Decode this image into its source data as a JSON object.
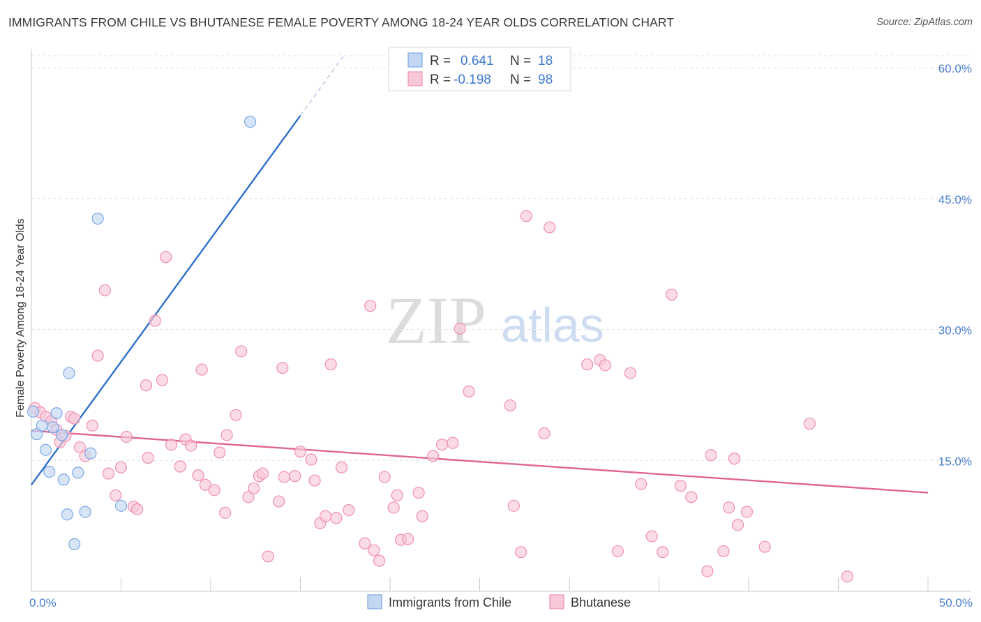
{
  "header": {
    "title": "IMMIGRANTS FROM CHILE VS BHUTANESE FEMALE POVERTY AMONG 18-24 YEAR OLDS CORRELATION CHART",
    "source": "Source: ZipAtlas.com"
  },
  "watermark": {
    "zip": "ZIP",
    "atlas": "atlas"
  },
  "legend": {
    "r_label": "R =",
    "n_label": "N =",
    "series1": {
      "r": "0.641",
      "n": "18"
    },
    "series2": {
      "r": "-0.198",
      "n": "98"
    }
  },
  "chart_data": {
    "type": "scatter",
    "title": "IMMIGRANTS FROM CHILE VS BHUTANESE FEMALE POVERTY AMONG 18-24 YEAR OLDS CORRELATION CHART",
    "xlabel": "",
    "ylabel": "Female Poverty Among 18-24 Year Olds",
    "xlim": [
      0,
      50
    ],
    "ylim": [
      0,
      60
    ],
    "x_tick_labels": [
      "0.0%",
      "50.0%"
    ],
    "y_tick_labels": [
      "15.0%",
      "30.0%",
      "45.0%",
      "60.0%"
    ],
    "y_ticks": [
      15,
      30,
      45,
      60
    ],
    "grid": true,
    "legend_position": "top-center",
    "series": [
      {
        "name": "Immigrants from Chile",
        "color": "#7aa7e6",
        "fill": "#c3d7f3",
        "trend_color": "#2f6fc9",
        "R": 0.641,
        "N": 18,
        "trend": {
          "x0": 0,
          "y0": 12.2,
          "x1": 15,
          "y1": 54.5,
          "dash_to_x": 17.5,
          "dash_to_y": 61.6
        },
        "points": [
          [
            0.1,
            20.6
          ],
          [
            0.3,
            18.0
          ],
          [
            0.6,
            19.0
          ],
          [
            0.8,
            16.2
          ],
          [
            1.0,
            13.7
          ],
          [
            1.2,
            18.8
          ],
          [
            1.4,
            20.4
          ],
          [
            1.7,
            17.9
          ],
          [
            1.8,
            12.8
          ],
          [
            2.0,
            8.8
          ],
          [
            2.1,
            25.0
          ],
          [
            2.4,
            5.4
          ],
          [
            2.6,
            13.6
          ],
          [
            3.0,
            9.1
          ],
          [
            3.3,
            15.8
          ],
          [
            3.7,
            42.7
          ],
          [
            5.0,
            9.8
          ],
          [
            12.2,
            53.8
          ]
        ]
      },
      {
        "name": "Bhutanese",
        "color": "#f08fb0",
        "fill": "#f8c8d8",
        "trend_color": "#e06592",
        "R": -0.198,
        "N": 98,
        "trend": {
          "x0": 0,
          "y0": 18.4,
          "x1": 50,
          "y1": 11.3
        },
        "points": [
          [
            0.2,
            21.0
          ],
          [
            0.5,
            20.5
          ],
          [
            0.8,
            20.0
          ],
          [
            1.1,
            19.5
          ],
          [
            1.4,
            18.5
          ],
          [
            1.6,
            17.1
          ],
          [
            1.9,
            17.8
          ],
          [
            2.2,
            20.0
          ],
          [
            2.4,
            19.8
          ],
          [
            2.7,
            16.5
          ],
          [
            3.0,
            15.5
          ],
          [
            3.4,
            19.0
          ],
          [
            3.7,
            27.0
          ],
          [
            4.1,
            34.5
          ],
          [
            4.3,
            13.5
          ],
          [
            4.7,
            11.0
          ],
          [
            5.0,
            14.2
          ],
          [
            5.3,
            17.7
          ],
          [
            5.7,
            9.7
          ],
          [
            5.9,
            9.4
          ],
          [
            6.4,
            23.6
          ],
          [
            6.5,
            15.3
          ],
          [
            6.9,
            31.0
          ],
          [
            7.3,
            24.2
          ],
          [
            7.5,
            38.3
          ],
          [
            7.8,
            16.8
          ],
          [
            8.3,
            14.3
          ],
          [
            8.6,
            17.4
          ],
          [
            8.9,
            16.7
          ],
          [
            9.3,
            13.3
          ],
          [
            9.5,
            25.4
          ],
          [
            9.7,
            12.2
          ],
          [
            10.2,
            11.6
          ],
          [
            10.5,
            15.9
          ],
          [
            10.8,
            9.0
          ],
          [
            10.9,
            17.9
          ],
          [
            11.4,
            20.2
          ],
          [
            11.7,
            27.5
          ],
          [
            12.1,
            10.8
          ],
          [
            12.4,
            11.8
          ],
          [
            12.7,
            13.2
          ],
          [
            12.9,
            13.5
          ],
          [
            13.2,
            4.0
          ],
          [
            13.8,
            10.3
          ],
          [
            14.0,
            25.6
          ],
          [
            14.1,
            13.1
          ],
          [
            14.7,
            13.2
          ],
          [
            15.0,
            16.0
          ],
          [
            15.6,
            15.1
          ],
          [
            15.8,
            12.7
          ],
          [
            16.1,
            7.8
          ],
          [
            16.4,
            8.6
          ],
          [
            16.7,
            26.0
          ],
          [
            17.0,
            8.4
          ],
          [
            17.3,
            14.2
          ],
          [
            17.7,
            9.3
          ],
          [
            18.6,
            5.5
          ],
          [
            18.9,
            32.7
          ],
          [
            19.1,
            4.7
          ],
          [
            19.4,
            3.5
          ],
          [
            19.7,
            13.1
          ],
          [
            20.2,
            9.6
          ],
          [
            20.4,
            11.0
          ],
          [
            20.6,
            5.9
          ],
          [
            21.0,
            6.0
          ],
          [
            21.6,
            11.3
          ],
          [
            21.8,
            8.6
          ],
          [
            22.4,
            15.5
          ],
          [
            22.9,
            16.8
          ],
          [
            23.5,
            17.0
          ],
          [
            23.9,
            30.1
          ],
          [
            24.4,
            22.9
          ],
          [
            26.7,
            21.3
          ],
          [
            26.9,
            9.8
          ],
          [
            27.3,
            4.5
          ],
          [
            27.6,
            43.0
          ],
          [
            28.6,
            18.1
          ],
          [
            28.9,
            41.7
          ],
          [
            31.0,
            26.0
          ],
          [
            31.7,
            26.5
          ],
          [
            32.0,
            25.9
          ],
          [
            32.7,
            4.6
          ],
          [
            33.4,
            25.0
          ],
          [
            34.0,
            12.3
          ],
          [
            34.6,
            6.3
          ],
          [
            35.2,
            4.5
          ],
          [
            35.7,
            34.0
          ],
          [
            36.2,
            12.1
          ],
          [
            36.8,
            10.8
          ],
          [
            37.7,
            2.3
          ],
          [
            37.9,
            15.6
          ],
          [
            38.6,
            4.6
          ],
          [
            38.9,
            9.6
          ],
          [
            39.2,
            15.2
          ],
          [
            39.4,
            7.6
          ],
          [
            39.9,
            9.1
          ],
          [
            40.9,
            5.1
          ],
          [
            43.4,
            19.2
          ],
          [
            45.5,
            1.7
          ]
        ]
      }
    ]
  },
  "bottom_legend": {
    "series1": "Immigrants from Chile",
    "series2": "Bhutanese"
  }
}
